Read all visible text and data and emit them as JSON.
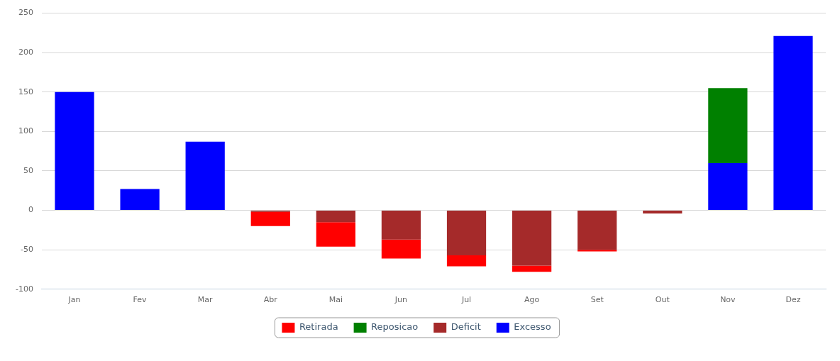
{
  "chart_data": {
    "type": "bar",
    "stacked": true,
    "categories": [
      "Jan",
      "Fev",
      "Mar",
      "Abr",
      "Mai",
      "Jun",
      "Jul",
      "Ago",
      "Set",
      "Out",
      "Nov",
      "Dez"
    ],
    "series": [
      {
        "name": "Excesso",
        "color": "#0000ff",
        "values": [
          150,
          27,
          87,
          null,
          null,
          null,
          null,
          null,
          null,
          null,
          60,
          221
        ]
      },
      {
        "name": "Deficit",
        "color": "#a52a2a",
        "values": [
          null,
          null,
          null,
          -2,
          -15,
          -37,
          -57,
          -70,
          -50,
          -4,
          null,
          null
        ]
      },
      {
        "name": "Reposicao",
        "color": "#008000",
        "values": [
          null,
          null,
          null,
          null,
          null,
          null,
          null,
          null,
          null,
          null,
          95,
          null
        ]
      },
      {
        "name": "Retirada",
        "color": "#ff0000",
        "values": [
          null,
          null,
          null,
          -18,
          -31,
          -24,
          -14,
          -8,
          -2,
          null,
          null,
          null
        ]
      }
    ],
    "ylim": [
      -100,
      250
    ],
    "yticks": [
      -100,
      -50,
      0,
      50,
      100,
      150,
      200,
      250
    ],
    "grid": "y",
    "legend": "bottom"
  }
}
